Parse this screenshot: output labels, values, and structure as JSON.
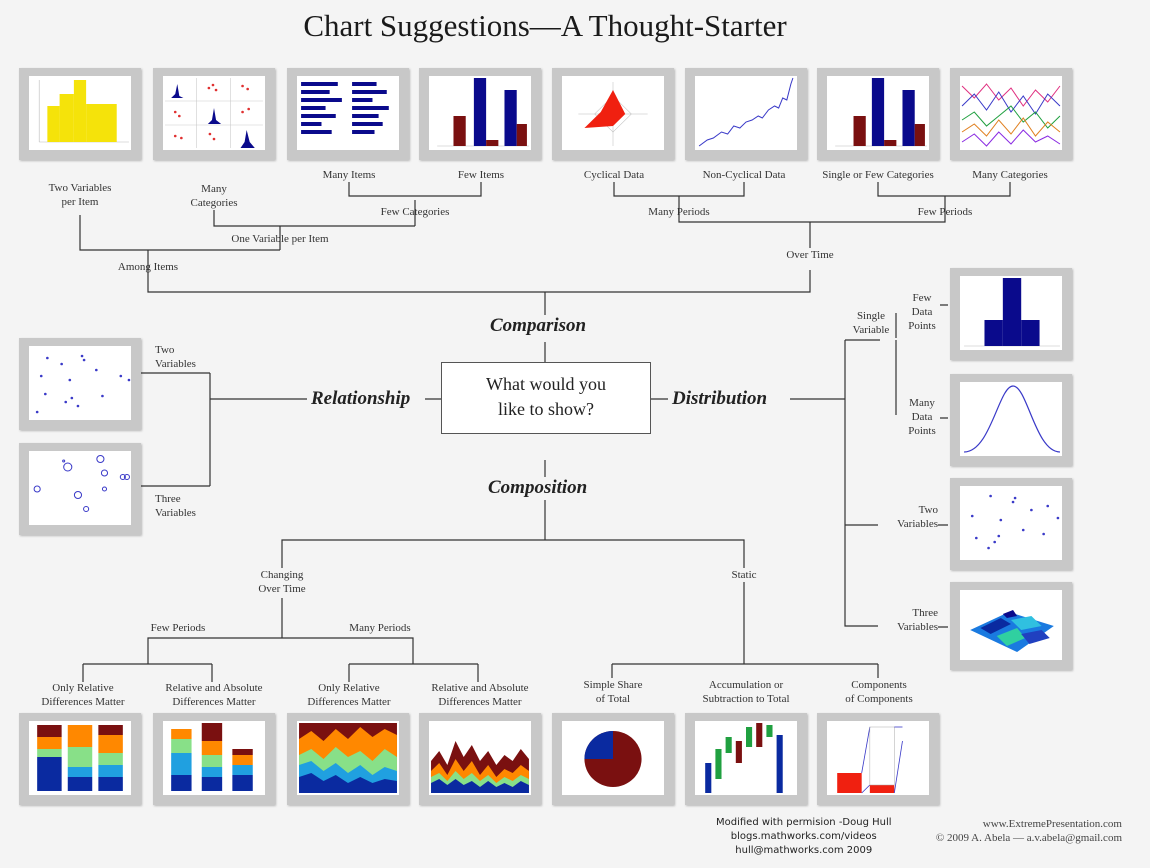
{
  "title": "Chart Suggestions—A Thought-Starter",
  "center": {
    "line1": "What would you",
    "line2": "like to show?"
  },
  "categories": {
    "comparison": "Comparison",
    "relationship": "Relationship",
    "distribution": "Distribution",
    "composition": "Composition"
  },
  "comparison": {
    "among_items": "Among Items",
    "over_time": "Over Time",
    "two_vars_per_item": [
      "Two Variables",
      "per Item"
    ],
    "many_categories": [
      "Many",
      "Categories"
    ],
    "one_var_per_item": "One Variable per Item",
    "many_items": "Many Items",
    "few_items": "Few Items",
    "few_categories": "Few Categories",
    "cyclical": "Cyclical Data",
    "non_cyclical": "Non-Cyclical Data",
    "many_periods": "Many Periods",
    "single_few_categories": "Single or Few Categories",
    "many_categories_time": "Many Categories",
    "few_periods": "Few Periods"
  },
  "relationship": {
    "two_vars": [
      "Two",
      "Variables"
    ],
    "three_vars": [
      "Three",
      "Variables"
    ]
  },
  "distribution": {
    "single_variable": [
      "Single",
      "Variable"
    ],
    "few_points": [
      "Few",
      "Data",
      "Points"
    ],
    "many_points": [
      "Many",
      "Data",
      "Points"
    ],
    "two_vars": [
      "Two",
      "Variables"
    ],
    "three_vars": [
      "Three",
      "Variables"
    ]
  },
  "composition": {
    "changing": [
      "Changing",
      "Over Time"
    ],
    "static": "Static",
    "few_periods": "Few Periods",
    "many_periods": "Many Periods",
    "only_relative_1": [
      "Only Relative",
      "Differences Matter"
    ],
    "rel_abs_1": [
      "Relative and Absolute",
      "Differences Matter"
    ],
    "only_relative_2": [
      "Only Relative",
      "Differences Matter"
    ],
    "rel_abs_2": [
      "Relative and Absolute",
      "Differences Matter"
    ],
    "simple_share": [
      "Simple Share",
      "of Total"
    ],
    "accumulation": [
      "Accumulation or",
      "Subtraction to Total"
    ],
    "components": [
      "Components",
      "of Components"
    ]
  },
  "credits": {
    "line1": "Modified with permision -Doug Hull",
    "line2": "blogs.mathworks.com/videos",
    "line3": "hull@mathworks.com 2009",
    "site": "www.ExtremePresentation.com",
    "copyright": "© 2009  A. Abela — a.v.abela@gmail.com"
  },
  "icons": [
    "variable-width-column-chart-icon",
    "table-with-embedded-charts-icon",
    "bar-chart-icon",
    "column-chart-icon",
    "radar-chart-icon",
    "line-chart-icon",
    "column-time-chart-icon",
    "multi-line-chart-icon",
    "scatter-chart-icon",
    "bubble-chart-icon",
    "column-histogram-icon",
    "line-histogram-icon",
    "scatter-distribution-icon",
    "3d-area-chart-icon",
    "stacked-100-column-icon",
    "stacked-column-icon",
    "stacked-100-area-icon",
    "stacked-area-icon",
    "pie-chart-icon",
    "waterfall-chart-icon",
    "stacked-column-components-icon"
  ],
  "colors": {
    "navy": "#0a0a8c",
    "maroon": "#7a1010",
    "yellow": "#f5e30a",
    "red": "#f02010",
    "blue_line": "#3a3ac8",
    "thumb_frame": "#c8c8c8"
  }
}
